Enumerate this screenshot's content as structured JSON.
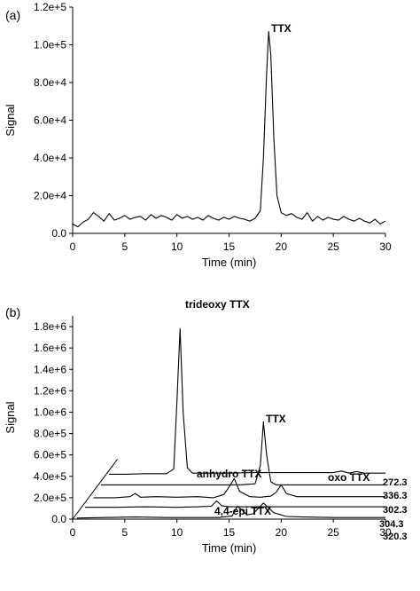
{
  "chart_data": [
    {
      "type": "line",
      "panel_label": "(a)",
      "xlabel": "Time (min)",
      "ylabel": "Signal",
      "xlim": [
        0,
        30
      ],
      "ylim": [
        0,
        120000
      ],
      "x_ticks": [
        0,
        5,
        10,
        15,
        20,
        25,
        30
      ],
      "x_tick_labels": [
        "0",
        "5",
        "10",
        "15",
        "20",
        "25",
        "30"
      ],
      "y_ticks": [
        0,
        20000,
        40000,
        60000,
        80000,
        100000,
        120000
      ],
      "y_tick_labels": [
        "0.0",
        "2.0e+4",
        "4.0e+4",
        "6.0e+4",
        "8.0e+4",
        "1.0e+5",
        "1.2e+5"
      ],
      "grid": false,
      "annotations": [
        {
          "text": "TTX",
          "x": 18.8,
          "y": 107000
        }
      ],
      "series": [
        {
          "x": [
            0,
            0.5,
            1,
            1.5,
            2,
            2.5,
            3,
            3.5,
            4,
            4.5,
            5,
            5.5,
            6,
            6.5,
            7,
            7.5,
            8,
            8.5,
            9,
            9.5,
            10,
            10.5,
            11,
            11.5,
            12,
            12.5,
            13,
            13.5,
            14,
            14.5,
            15,
            15.5,
            16,
            16.5,
            17,
            17.5,
            18,
            18.3,
            18.6,
            18.8,
            19.0,
            19.3,
            19.6,
            20,
            20.5,
            21,
            21.5,
            22,
            22.5,
            23,
            23.5,
            24,
            24.5,
            25,
            25.5,
            26,
            26.5,
            27,
            27.5,
            28,
            28.5,
            29,
            29.5,
            30
          ],
          "y": [
            5000,
            3500,
            6000,
            7500,
            11000,
            9000,
            6500,
            10500,
            7000,
            8000,
            9500,
            7500,
            8500,
            9000,
            7000,
            10000,
            8000,
            9500,
            8500,
            7000,
            10000,
            8000,
            9000,
            7500,
            8500,
            7000,
            9500,
            8000,
            7000,
            8500,
            7500,
            9000,
            8000,
            7500,
            6500,
            8000,
            12000,
            40000,
            85000,
            107000,
            95000,
            50000,
            20000,
            11000,
            9500,
            10500,
            8500,
            7500,
            11000,
            6500,
            9000,
            7000,
            8500,
            7500,
            7000,
            9000,
            7500,
            6500,
            8000,
            6500,
            5500,
            7500,
            5000,
            6500
          ]
        }
      ]
    },
    {
      "type": "line",
      "panel_label": "(b)",
      "xlabel": "Time (min)",
      "ylabel": "Signal",
      "xlim": [
        0,
        30
      ],
      "ylim": [
        0,
        1900000
      ],
      "x_ticks": [
        0,
        5,
        10,
        15,
        20,
        25,
        30
      ],
      "x_tick_labels": [
        "0",
        "5",
        "10",
        "15",
        "20",
        "25",
        "30"
      ],
      "y_ticks": [
        0,
        200000,
        400000,
        600000,
        800000,
        1000000,
        1200000,
        1400000,
        1600000,
        1800000
      ],
      "y_tick_labels": [
        "0.0",
        "2.0e+5",
        "4.0e+5",
        "6.0e+5",
        "8.0e+5",
        "1.0e+6",
        "1.2e+6",
        "1.4e+6",
        "1.6e+6",
        "1.8e+6"
      ],
      "grid": false,
      "annotations": [
        {
          "text": "trideoxy TTX",
          "x": 11.2,
          "y": 1780000
        },
        {
          "text": "TTX",
          "x": 18.3,
          "y": 1070000
        },
        {
          "text": "anhydro TTX",
          "x": 15.5,
          "y": 640000
        },
        {
          "text": "oxo TTX",
          "x": 27.5,
          "y": 460000
        },
        {
          "text": "4,4-epi TTX",
          "x": 16.5,
          "y": 180000
        }
      ],
      "series": [
        {
          "name": "272.3",
          "x": [
            3.5,
            5,
            7,
            9,
            9.7,
            10.0,
            10.3,
            10.6,
            11.0,
            11.5,
            13,
            15,
            17,
            19,
            21,
            23,
            25,
            25.8,
            26.5,
            27.2,
            28,
            29,
            30
          ],
          "y": [
            420000,
            420000,
            425000,
            425000,
            470000,
            1100000,
            1780000,
            1000000,
            480000,
            430000,
            430000,
            430000,
            435000,
            435000,
            435000,
            435000,
            435000,
            450000,
            430000,
            445000,
            430000,
            430000,
            430000
          ]
        },
        {
          "name": "336.3",
          "x": [
            2.7,
            5,
            8,
            10,
            12,
            14,
            16,
            17.5,
            18.0,
            18.3,
            18.6,
            19.0,
            19.5,
            21,
            23,
            25,
            27,
            29,
            30
          ],
          "y": [
            320000,
            320000,
            320000,
            320000,
            320000,
            320000,
            320000,
            330000,
            500000,
            910000,
            600000,
            350000,
            320000,
            320000,
            320000,
            320000,
            320000,
            320000,
            320000
          ]
        },
        {
          "name": "302.3",
          "x": [
            2.0,
            4,
            5.5,
            6,
            6.5,
            8,
            10,
            12,
            13.5,
            14.5,
            15,
            15.5,
            16,
            17,
            18,
            19,
            19.5,
            20,
            20.5,
            21.5,
            23,
            25,
            27,
            29,
            30
          ],
          "y": [
            200000,
            200000,
            210000,
            240000,
            205000,
            210000,
            205000,
            210000,
            200000,
            230000,
            300000,
            380000,
            260000,
            210000,
            205000,
            215000,
            250000,
            320000,
            240000,
            210000,
            210000,
            210000,
            210000,
            210000,
            210000
          ]
        },
        {
          "name": "304.3",
          "x": [
            1.2,
            4,
            7,
            10,
            12,
            13.3,
            13.8,
            14.3,
            15,
            16,
            18,
            20,
            22,
            24,
            26,
            28,
            30
          ],
          "y": [
            110000,
            110000,
            115000,
            110000,
            115000,
            120000,
            170000,
            125000,
            115000,
            115000,
            115000,
            115000,
            115000,
            115000,
            115000,
            115000,
            115000
          ]
        },
        {
          "name": "320.3",
          "x": [
            0.4,
            3,
            6,
            9,
            12,
            14,
            15.3,
            15.8,
            16.2,
            16.7,
            17.3,
            18.3,
            19.3,
            20.5,
            22,
            25,
            28,
            30
          ],
          "y": [
            10000,
            15000,
            20000,
            15000,
            15000,
            15000,
            30000,
            120000,
            90000,
            40000,
            50000,
            150000,
            60000,
            25000,
            20000,
            15000,
            15000,
            15000
          ]
        }
      ]
    }
  ]
}
